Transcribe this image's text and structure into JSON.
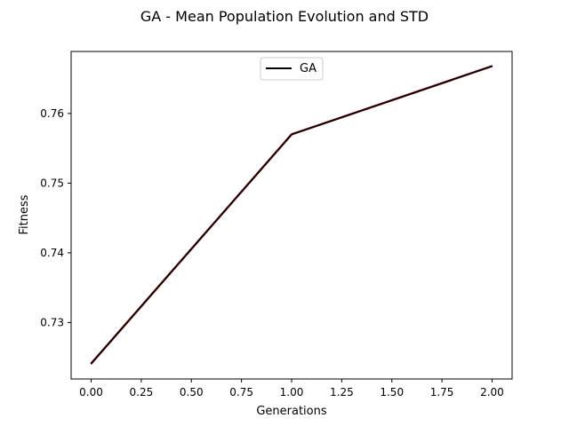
{
  "chart_data": {
    "type": "line",
    "title": "GA - Mean Population Evolution and STD",
    "xlabel": "Generations",
    "ylabel": "Fitness",
    "xlim": [
      -0.1,
      2.1
    ],
    "ylim": [
      0.7219,
      0.7689
    ],
    "x_ticks": [
      0.0,
      0.25,
      0.5,
      0.75,
      1.0,
      1.25,
      1.5,
      1.75,
      2.0
    ],
    "x_tick_labels": [
      "0.00",
      "0.25",
      "0.50",
      "0.75",
      "1.00",
      "1.25",
      "1.50",
      "1.75",
      "2.00"
    ],
    "y_ticks": [
      0.73,
      0.74,
      0.75,
      0.76
    ],
    "y_tick_labels": [
      "0.73",
      "0.74",
      "0.75",
      "0.76"
    ],
    "grid": false,
    "legend_position": "top-center",
    "series": [
      {
        "name": "GA",
        "color": "#000000",
        "x": [
          0,
          1,
          2
        ],
        "y": [
          0.7241,
          0.757,
          0.7668
        ]
      }
    ],
    "std_color": "#8b0000"
  }
}
